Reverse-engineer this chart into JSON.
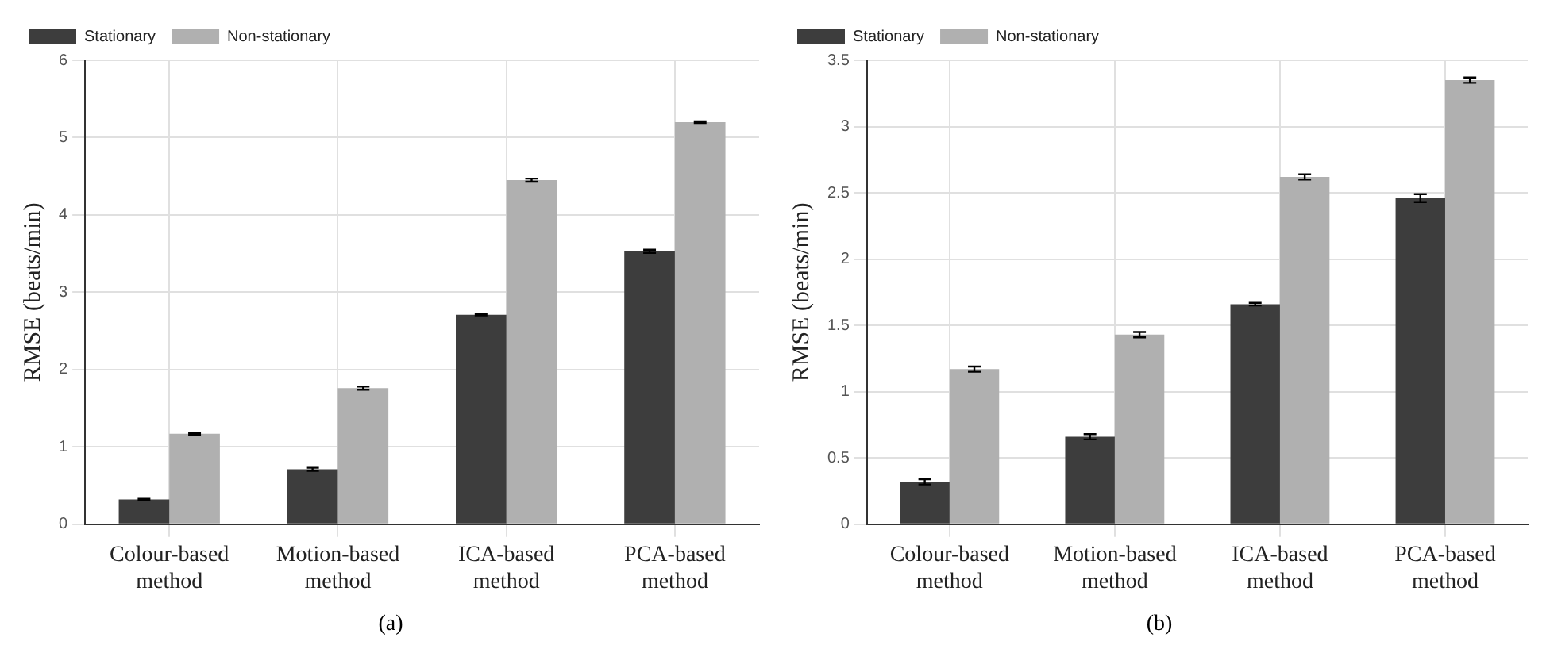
{
  "chart_data": [
    {
      "type": "bar",
      "categories": [
        "Colour-based method",
        "Motion-based method",
        "ICA-based method",
        "PCA-based method"
      ],
      "ylabel": "RMSE (beats/min)",
      "ylim": [
        0,
        6
      ],
      "yticks": [
        0,
        1,
        2,
        3,
        4,
        5,
        6
      ],
      "grid": true,
      "legend": "top left",
      "annotations": [
        "(a)"
      ],
      "series": [
        {
          "name": "Stationary",
          "color": "#3d3d3d",
          "values": [
            0.32,
            0.71,
            2.71,
            3.53
          ],
          "errors": [
            0.01,
            0.02,
            0.01,
            0.02
          ]
        },
        {
          "name": "Non-stationary",
          "color": "#b0b0b0",
          "values": [
            1.17,
            1.76,
            4.45,
            5.2
          ],
          "errors": [
            0.01,
            0.02,
            0.02,
            0.01
          ]
        }
      ]
    },
    {
      "type": "bar",
      "categories": [
        "Colour-based method",
        "Motion-based method",
        "ICA-based method",
        "PCA-based method"
      ],
      "ylabel": "RMSE (beats/min)",
      "ylim": [
        0,
        3.5
      ],
      "yticks": [
        0,
        0.5,
        1,
        1.5,
        2,
        2.5,
        3,
        3.5
      ],
      "grid": true,
      "legend": "top left",
      "annotations": [
        "(b)"
      ],
      "series": [
        {
          "name": "Stationary",
          "color": "#3d3d3d",
          "values": [
            0.32,
            0.66,
            1.66,
            2.46
          ],
          "errors": [
            0.02,
            0.02,
            0.01,
            0.03
          ]
        },
        {
          "name": "Non-stationary",
          "color": "#b0b0b0",
          "values": [
            1.17,
            1.43,
            2.62,
            3.35
          ],
          "errors": [
            0.02,
            0.02,
            0.02,
            0.02
          ]
        }
      ]
    }
  ]
}
